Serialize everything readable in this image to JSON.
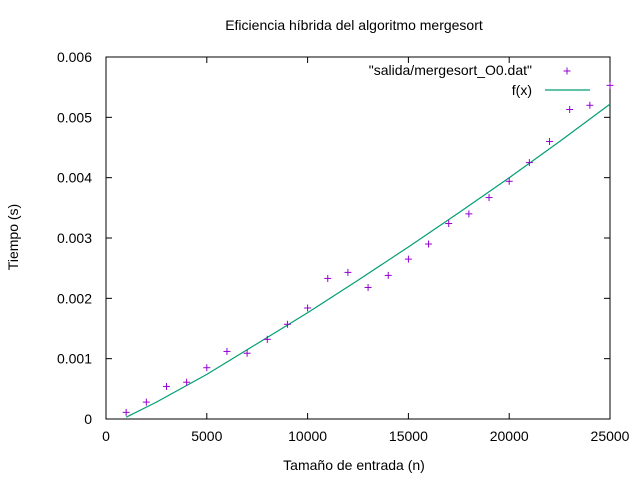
{
  "chart_data": {
    "type": "scatter",
    "title": "Eficiencia híbrida del algoritmo mergesort",
    "xlabel": "Tamaño de entrada (n)",
    "ylabel": "Tiempo (s)",
    "xlim": [
      0,
      25000
    ],
    "ylim": [
      0,
      0.006
    ],
    "x_ticks": [
      "0",
      "5000",
      "10000",
      "15000",
      "20000",
      "25000"
    ],
    "y_ticks": [
      "0",
      "0.001",
      "0.002",
      "0.003",
      "0.004",
      "0.005",
      "0.006"
    ],
    "grid": false,
    "legend_position": "top-right",
    "series": [
      {
        "name": "\"salida/mergesort_O0.dat\"",
        "type": "scatter",
        "marker": "+",
        "color": "#9400d3",
        "points": [
          [
            1000,
            0.00011
          ],
          [
            2000,
            0.00028
          ],
          [
            3000,
            0.00054
          ],
          [
            4000,
            0.00061
          ],
          [
            5000,
            0.00085
          ],
          [
            6000,
            0.00112
          ],
          [
            7000,
            0.00109
          ],
          [
            8000,
            0.00132
          ],
          [
            9000,
            0.00157
          ],
          [
            10000,
            0.00184
          ],
          [
            11000,
            0.00233
          ],
          [
            12000,
            0.00243
          ],
          [
            13000,
            0.00218
          ],
          [
            14000,
            0.00238
          ],
          [
            15000,
            0.00265
          ],
          [
            16000,
            0.0029
          ],
          [
            17000,
            0.00324
          ],
          [
            18000,
            0.0034
          ],
          [
            19000,
            0.00367
          ],
          [
            20000,
            0.00394
          ],
          [
            21000,
            0.00425
          ],
          [
            22000,
            0.0046
          ],
          [
            23000,
            0.00513
          ],
          [
            24000,
            0.0052
          ],
          [
            25000,
            0.00553
          ]
        ]
      },
      {
        "name": "f(x)",
        "type": "line",
        "color": "#009e73",
        "points": [
          [
            1000,
            3e-05
          ],
          [
            2500,
            0.00028
          ],
          [
            5000,
            0.00074
          ],
          [
            7500,
            0.00125
          ],
          [
            10000,
            0.00176
          ],
          [
            12500,
            0.0023
          ],
          [
            15000,
            0.00285
          ],
          [
            17500,
            0.00342
          ],
          [
            20000,
            0.004
          ],
          [
            22500,
            0.0046
          ],
          [
            25000,
            0.00522
          ]
        ]
      }
    ]
  }
}
